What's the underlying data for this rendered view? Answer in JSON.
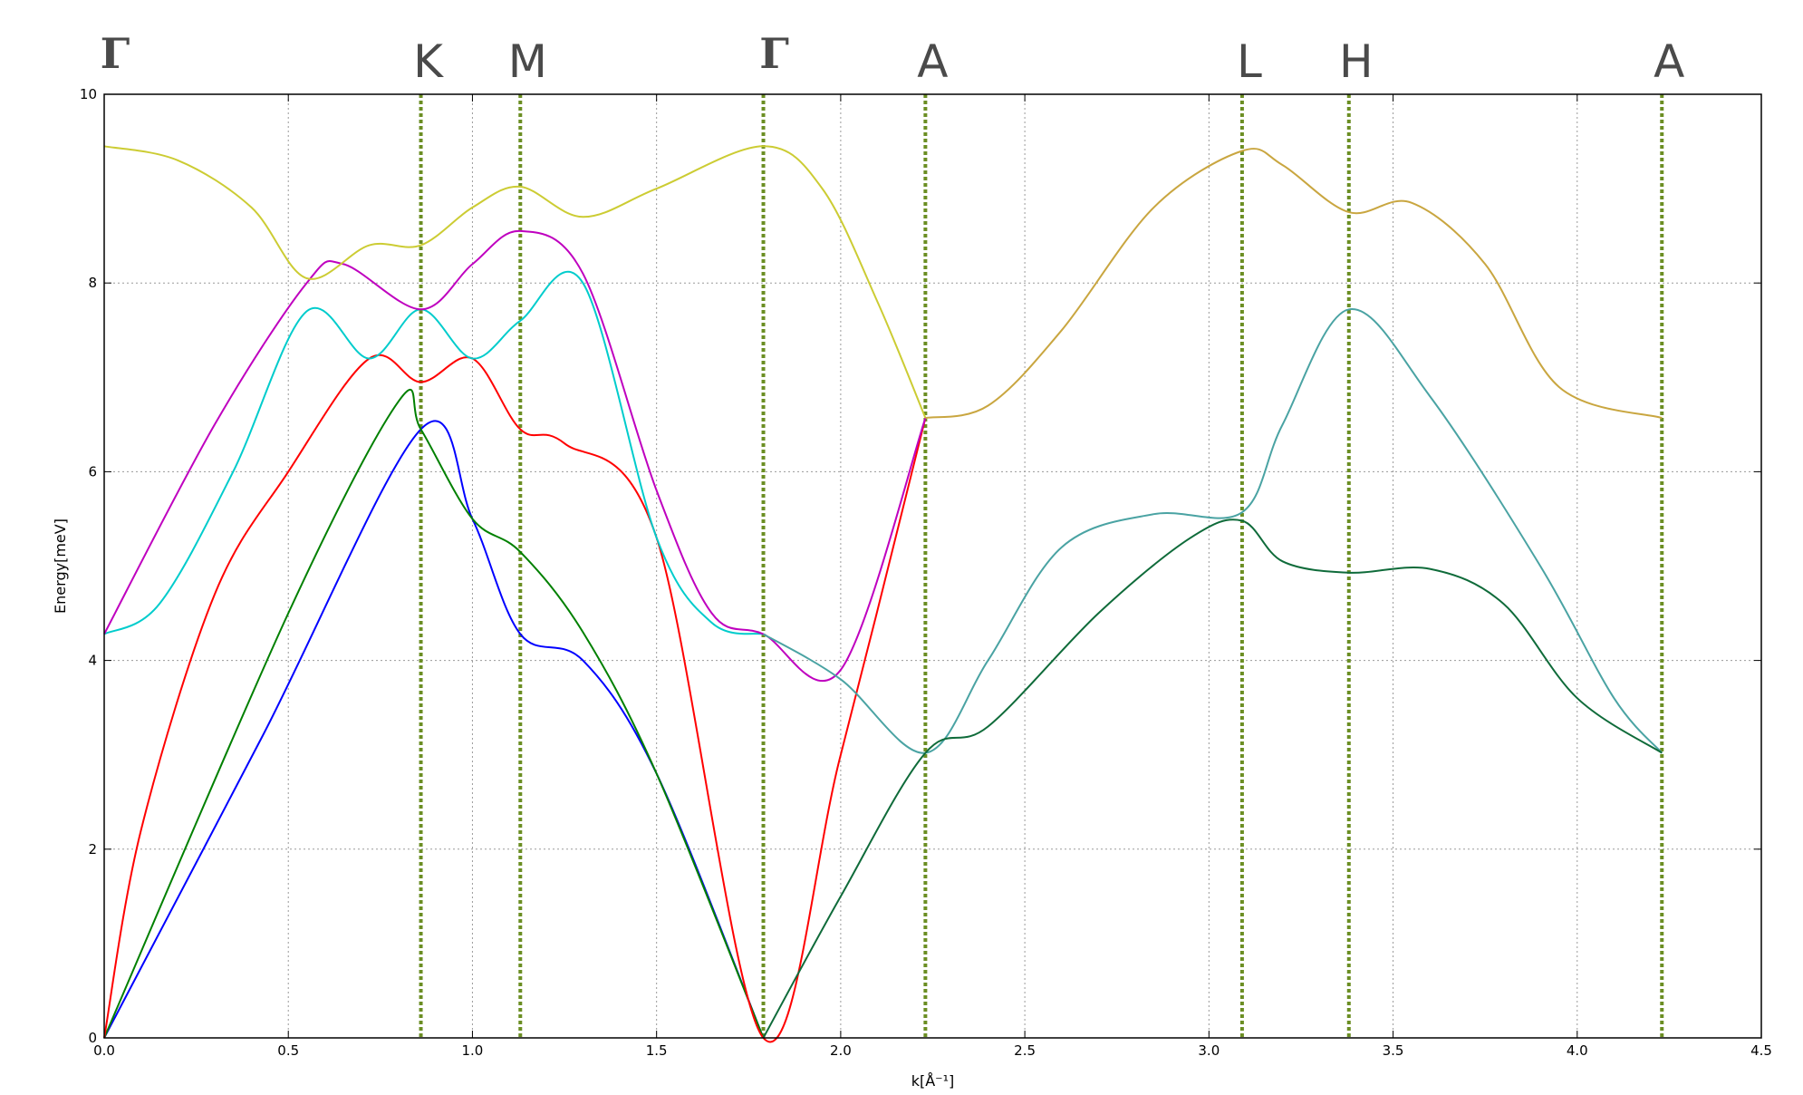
{
  "chart_data": {
    "type": "line",
    "title": "",
    "xlabel": "k[Å⁻¹]",
    "ylabel": "Energy[meV]",
    "xlim": [
      0,
      4.5
    ],
    "ylim": [
      0,
      10
    ],
    "xticks": [
      0.0,
      0.5,
      1.0,
      1.5,
      2.0,
      2.5,
      3.0,
      3.5,
      4.0,
      4.5
    ],
    "xtick_labels": [
      "0.0",
      "0.5",
      "1.0",
      "1.5",
      "2.0",
      "2.5",
      "3.0",
      "3.5",
      "4.0",
      "4.5"
    ],
    "yticks": [
      0,
      2,
      4,
      6,
      8,
      10
    ],
    "ytick_labels": [
      "0",
      "2",
      "4",
      "6",
      "8",
      "10"
    ],
    "grid": true,
    "grid_style": "dotted",
    "symmetry_points": [
      {
        "label": "Γ",
        "x": 0.0,
        "line": false
      },
      {
        "label": "K",
        "x": 0.86,
        "line": true
      },
      {
        "label": "M",
        "x": 1.13,
        "line": true
      },
      {
        "label": "Γ",
        "x": 1.79,
        "line": true
      },
      {
        "label": "A",
        "x": 2.23,
        "line": true
      },
      {
        "label": "L",
        "x": 3.09,
        "line": true
      },
      {
        "label": "H",
        "x": 3.38,
        "line": true
      },
      {
        "label": "A",
        "x": 4.23,
        "line": true
      }
    ],
    "symmetry_line_color": "#6b8e23",
    "series": [
      {
        "color": "#0000ff",
        "points": [
          [
            0,
            0
          ],
          [
            0.43,
            3.2
          ],
          [
            0.86,
            6.45
          ],
          [
            1.0,
            5.5
          ],
          [
            1.13,
            4.28
          ],
          [
            1.3,
            4.0
          ],
          [
            1.5,
            2.8
          ],
          [
            1.79,
            0
          ]
        ]
      },
      {
        "color": "#008000",
        "points": [
          [
            0,
            0
          ],
          [
            0.5,
            4.5
          ],
          [
            0.8,
            6.75
          ],
          [
            0.86,
            6.45
          ],
          [
            1.0,
            5.5
          ],
          [
            1.13,
            5.15
          ],
          [
            1.3,
            4.3
          ],
          [
            1.5,
            2.8
          ],
          [
            1.79,
            0
          ]
        ]
      },
      {
        "color": "#ff0000",
        "points": [
          [
            0,
            0
          ],
          [
            0.1,
            2.2
          ],
          [
            0.3,
            4.7
          ],
          [
            0.5,
            6.0
          ],
          [
            0.72,
            7.2
          ],
          [
            0.86,
            6.95
          ],
          [
            1.0,
            7.2
          ],
          [
            1.13,
            6.45
          ],
          [
            1.25,
            6.3
          ],
          [
            1.5,
            5.3
          ],
          [
            1.79,
            0
          ],
          [
            2.0,
            3.0
          ],
          [
            2.23,
            6.57
          ]
        ]
      },
      {
        "color": "#00cccc",
        "points": [
          [
            0,
            4.28
          ],
          [
            0.15,
            4.6
          ],
          [
            0.35,
            6.0
          ],
          [
            0.55,
            7.7
          ],
          [
            0.72,
            7.2
          ],
          [
            0.86,
            7.72
          ],
          [
            1.0,
            7.2
          ],
          [
            1.13,
            7.6
          ],
          [
            1.3,
            8.0
          ],
          [
            1.5,
            5.3
          ],
          [
            1.65,
            4.4
          ],
          [
            1.79,
            4.28
          ]
        ]
      },
      {
        "color": "#bf00bf",
        "points": [
          [
            0,
            4.28
          ],
          [
            0.3,
            6.5
          ],
          [
            0.55,
            8.0
          ],
          [
            0.65,
            8.2
          ],
          [
            0.86,
            7.72
          ],
          [
            1.0,
            8.2
          ],
          [
            1.13,
            8.55
          ],
          [
            1.3,
            8.1
          ],
          [
            1.5,
            5.8
          ],
          [
            1.65,
            4.5
          ],
          [
            1.79,
            4.28
          ],
          [
            2.0,
            3.9
          ],
          [
            2.23,
            6.57
          ]
        ]
      },
      {
        "color": "#cccc33",
        "points": [
          [
            0,
            9.45
          ],
          [
            0.2,
            9.3
          ],
          [
            0.4,
            8.8
          ],
          [
            0.55,
            8.05
          ],
          [
            0.72,
            8.4
          ],
          [
            0.86,
            8.4
          ],
          [
            1.0,
            8.8
          ],
          [
            1.13,
            9.02
          ],
          [
            1.3,
            8.7
          ],
          [
            1.5,
            9.0
          ],
          [
            1.79,
            9.45
          ],
          [
            1.95,
            9.0
          ],
          [
            2.1,
            7.8
          ],
          [
            2.23,
            6.57
          ]
        ]
      },
      {
        "color": "#4aa3a3",
        "points": [
          [
            1.79,
            4.28
          ],
          [
            2.0,
            3.8
          ],
          [
            2.23,
            3.02
          ],
          [
            2.4,
            4.0
          ],
          [
            2.6,
            5.2
          ],
          [
            2.85,
            5.55
          ],
          [
            3.09,
            5.57
          ],
          [
            3.2,
            6.5
          ],
          [
            3.38,
            7.72
          ],
          [
            3.6,
            6.8
          ],
          [
            3.9,
            5.0
          ],
          [
            4.1,
            3.6
          ],
          [
            4.23,
            3.02
          ]
        ]
      },
      {
        "color": "#0f6b3a",
        "points": [
          [
            1.79,
            0
          ],
          [
            2.0,
            1.5
          ],
          [
            2.23,
            3.02
          ],
          [
            2.4,
            3.3
          ],
          [
            2.7,
            4.5
          ],
          [
            2.95,
            5.3
          ],
          [
            3.09,
            5.48
          ],
          [
            3.2,
            5.05
          ],
          [
            3.38,
            4.93
          ],
          [
            3.6,
            4.97
          ],
          [
            3.8,
            4.6
          ],
          [
            4.0,
            3.6
          ],
          [
            4.23,
            3.02
          ]
        ]
      },
      {
        "color": "#c9a640",
        "points": [
          [
            2.23,
            6.57
          ],
          [
            2.4,
            6.7
          ],
          [
            2.6,
            7.5
          ],
          [
            2.85,
            8.8
          ],
          [
            3.09,
            9.4
          ],
          [
            3.2,
            9.25
          ],
          [
            3.38,
            8.75
          ],
          [
            3.55,
            8.85
          ],
          [
            3.75,
            8.2
          ],
          [
            3.95,
            6.9
          ],
          [
            4.23,
            6.57
          ]
        ]
      }
    ]
  }
}
